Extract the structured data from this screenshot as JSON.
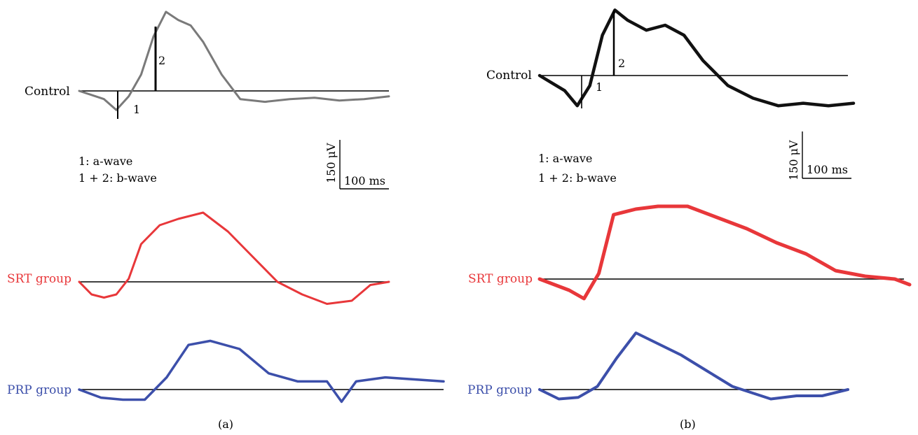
{
  "figure": {
    "panels": [
      {
        "caption": "(a)",
        "legend_lines": [
          "1: a-wave",
          "1 + 2: b-wave"
        ],
        "scale_bar": {
          "voltage_label": "150 μV",
          "time_label": "100 ms"
        },
        "marker_labels": [
          "1",
          "2"
        ]
      },
      {
        "caption": "(b)",
        "legend_lines": [
          "1: a-wave",
          "1 + 2: b-wave"
        ],
        "scale_bar": {
          "voltage_label": "150 μV",
          "time_label": "100 ms"
        },
        "marker_labels": [
          "1",
          "2"
        ]
      }
    ],
    "colors": {
      "control_a": "#7a7a7a",
      "control_b": "#111111",
      "srt": "#e8373a",
      "prp": "#3c4faa"
    }
  },
  "chart_data": [
    {
      "type": "line",
      "panel": "(a)",
      "units": {
        "x": "ms",
        "y": "μV"
      },
      "scale": {
        "voltage": 150,
        "time": 100
      },
      "series": [
        {
          "name": "Control",
          "x": [
            0,
            20,
            40,
            60,
            80,
            100,
            120,
            140,
            160,
            180,
            200,
            230,
            260,
            300,
            340,
            380,
            420,
            460,
            500
          ],
          "y": [
            0,
            -15,
            -30,
            -70,
            -20,
            60,
            200,
            290,
            260,
            240,
            180,
            60,
            -30,
            -40,
            -30,
            -25,
            -35,
            -30,
            -20
          ]
        },
        {
          "name": "SRT group",
          "x": [
            0,
            20,
            40,
            60,
            80,
            100,
            130,
            160,
            200,
            240,
            280,
            320,
            360,
            400,
            440,
            470,
            500
          ],
          "y": [
            0,
            -40,
            -50,
            -40,
            10,
            120,
            180,
            200,
            220,
            160,
            80,
            0,
            -40,
            -70,
            -60,
            -10,
            0
          ]
        },
        {
          "name": "PRP group",
          "x": [
            0,
            30,
            60,
            90,
            120,
            150,
            180,
            220,
            260,
            300,
            340,
            360,
            380,
            420,
            460,
            500
          ],
          "y": [
            0,
            -20,
            -25,
            -25,
            30,
            110,
            120,
            100,
            40,
            20,
            20,
            -30,
            20,
            30,
            25,
            20
          ]
        }
      ]
    },
    {
      "type": "line",
      "panel": "(b)",
      "units": {
        "x": "ms",
        "y": "μV"
      },
      "scale": {
        "voltage": 150,
        "time": 100
      },
      "series": [
        {
          "name": "Control",
          "x": [
            0,
            20,
            40,
            60,
            80,
            100,
            120,
            140,
            170,
            200,
            230,
            260,
            300,
            340,
            380,
            420,
            460,
            500
          ],
          "y": [
            0,
            -30,
            -60,
            -120,
            -40,
            160,
            260,
            220,
            180,
            200,
            160,
            60,
            -40,
            -90,
            -120,
            -110,
            -120,
            -110
          ]
        },
        {
          "name": "SRT group",
          "x": [
            0,
            20,
            40,
            60,
            80,
            100,
            130,
            160,
            200,
            240,
            280,
            320,
            360,
            400,
            440,
            480,
            500
          ],
          "y": [
            0,
            -20,
            -40,
            -70,
            20,
            230,
            250,
            260,
            260,
            220,
            180,
            130,
            90,
            30,
            10,
            0,
            -20
          ]
        },
        {
          "name": "PRP group",
          "x": [
            0,
            30,
            60,
            90,
            120,
            150,
            180,
            220,
            260,
            300,
            330,
            360,
            400,
            440,
            480
          ],
          "y": [
            0,
            -30,
            -25,
            10,
            100,
            180,
            150,
            110,
            60,
            10,
            -10,
            -30,
            -20,
            -20,
            0
          ]
        }
      ]
    }
  ]
}
